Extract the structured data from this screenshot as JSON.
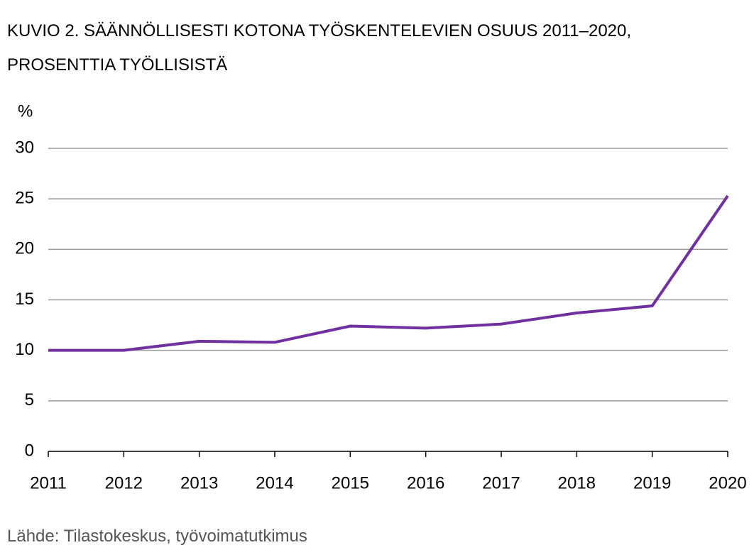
{
  "chart_data": {
    "type": "line",
    "title": "KUVIO 2. SÄÄNNÖLLISESTI KOTONA TYÖSKENTELEVIEN OSUUS 2011–2020, PROSENTTIA TYÖLLISISTÄ",
    "y_label": "%",
    "source": "Lähde: Tilastokeskus, työvoimatutkimus",
    "x": [
      2011,
      2012,
      2013,
      2014,
      2015,
      2016,
      2017,
      2018,
      2019,
      2020
    ],
    "series": [
      {
        "color": "#7030a0",
        "values": [
          10,
          10,
          10.9,
          10.8,
          12.4,
          12.2,
          12.6,
          13.7,
          14.4,
          25.3
        ]
      }
    ],
    "xlim": [
      2011,
      2020
    ],
    "xticks": [
      2011,
      2012,
      2013,
      2014,
      2015,
      2016,
      2017,
      2018,
      2019,
      2020
    ],
    "ylim": [
      0,
      30
    ],
    "yticks": [
      0,
      5,
      10,
      15,
      20,
      25,
      30
    ],
    "grid": true
  }
}
